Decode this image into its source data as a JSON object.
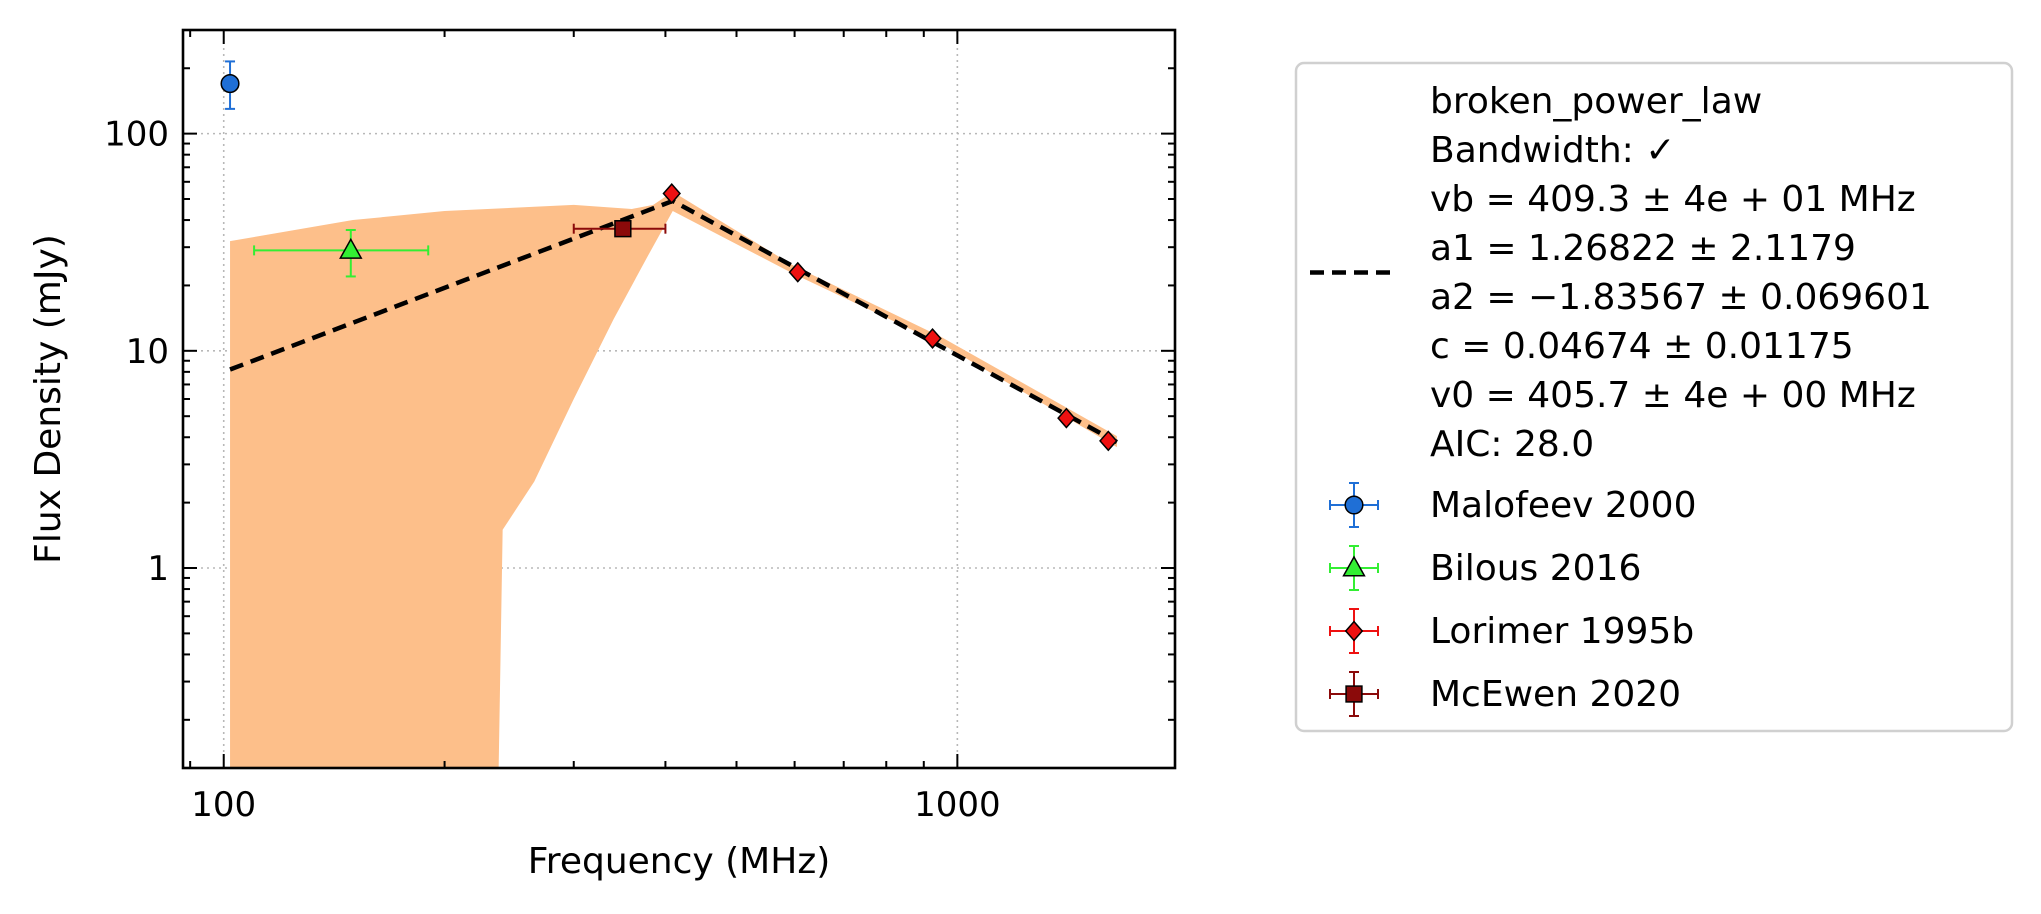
{
  "chart_data": {
    "type": "scatter",
    "xlabel": "Frequency (MHz)",
    "ylabel": "Flux Density (mJy)",
    "xscale": "log",
    "yscale": "log",
    "xlim": [
      88,
      1980
    ],
    "ylim": [
      0.12,
      300
    ],
    "xticks": [
      {
        "value": 100,
        "label": "100"
      },
      {
        "value": 1000,
        "label": "1000"
      }
    ],
    "yticks": [
      {
        "value": 1,
        "label": "1"
      },
      {
        "value": 10,
        "label": "10"
      },
      {
        "value": 100,
        "label": "100"
      }
    ],
    "grid": true,
    "legend_position": "outside-right",
    "model": {
      "name": "broken_power_law",
      "color": "#000000",
      "band_color": "#fdbf8a",
      "legend_lines": [
        "broken_power_law",
        "Bandwidth: ✓",
        "vb = 409.3 ± 4e + 01 MHz",
        "a1 = 1.26822 ± 2.1179",
        "a2 = −1.83567 ± 0.069601",
        "c = 0.04674 ± 0.01175",
        "v0 = 405.7 ± 4e + 00 MHz",
        "AIC: 28.0"
      ],
      "curve": [
        {
          "x": 102,
          "y": 8.2
        },
        {
          "x": 409.3,
          "y": 49
        },
        {
          "x": 1650,
          "y": 3.8
        }
      ],
      "band_upper": [
        {
          "x": 102,
          "y": 32
        },
        {
          "x": 150,
          "y": 40
        },
        {
          "x": 200,
          "y": 44
        },
        {
          "x": 300,
          "y": 47
        },
        {
          "x": 360,
          "y": 45
        },
        {
          "x": 385,
          "y": 47
        },
        {
          "x": 409.3,
          "y": 54
        },
        {
          "x": 600,
          "y": 24.5
        },
        {
          "x": 950,
          "y": 11.6
        },
        {
          "x": 1650,
          "y": 4.05
        }
      ],
      "band_lower": [
        {
          "x": 1650,
          "y": 3.6
        },
        {
          "x": 950,
          "y": 10.8
        },
        {
          "x": 600,
          "y": 22.5
        },
        {
          "x": 409.3,
          "y": 44
        },
        {
          "x": 380,
          "y": 28
        },
        {
          "x": 340,
          "y": 14
        },
        {
          "x": 300,
          "y": 6
        },
        {
          "x": 265,
          "y": 2.5
        },
        {
          "x": 240,
          "y": 1.5
        },
        {
          "x": 237,
          "y": 0.12
        },
        {
          "x": 102,
          "y": 0.12
        }
      ]
    },
    "series": [
      {
        "name": "Malofeev 2000",
        "marker": "circle",
        "color": "#1f6fd6",
        "points": [
          {
            "x": 102,
            "y": 170,
            "yerr_low": 40,
            "yerr_high": 45
          }
        ]
      },
      {
        "name": "Bilous 2016",
        "marker": "triangle",
        "color": "#33ee33",
        "points": [
          {
            "x": 149,
            "y": 29,
            "xerr_low": 39,
            "xerr_high": 41,
            "yerr_low": 7,
            "yerr_high": 7
          }
        ]
      },
      {
        "name": "Lorimer 1995b",
        "marker": "diamond",
        "color": "#ee1111",
        "points": [
          {
            "x": 408,
            "y": 53
          },
          {
            "x": 606,
            "y": 23
          },
          {
            "x": 925,
            "y": 11.4
          },
          {
            "x": 1408,
            "y": 4.9
          },
          {
            "x": 1606,
            "y": 3.85
          }
        ]
      },
      {
        "name": "McEwen 2020",
        "marker": "square",
        "color": "#8b0a0a",
        "points": [
          {
            "x": 350,
            "y": 36.5,
            "xerr_low": 50,
            "xerr_high": 50,
            "yerr_low": 2,
            "yerr_high": 2
          }
        ]
      }
    ]
  }
}
